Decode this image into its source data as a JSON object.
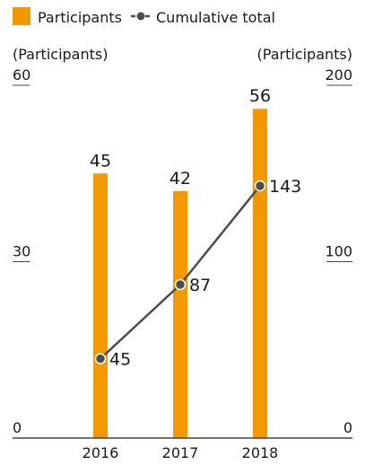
{
  "chart_data": {
    "type": "bar",
    "categories": [
      "2016",
      "2017",
      "2018"
    ],
    "series": [
      {
        "name": "Participants",
        "type": "bar",
        "axis": "left",
        "color": "#F39800",
        "values": [
          45,
          42,
          56
        ],
        "labels": [
          "45",
          "42",
          "56"
        ]
      },
      {
        "name": "Cumulative total",
        "type": "line",
        "axis": "right",
        "color": "#4d4d4d",
        "marker": "circle",
        "values": [
          45,
          87,
          143
        ],
        "labels": [
          "45",
          "87",
          "143"
        ]
      }
    ],
    "left_axis": {
      "label": "(Participants)",
      "ylim": [
        0,
        60
      ],
      "ticks": [
        "0",
        "30",
        "60"
      ]
    },
    "right_axis": {
      "label": "(Participants)",
      "ylim": [
        0,
        200
      ],
      "ticks": [
        "0",
        "100",
        "200"
      ]
    },
    "grid": false,
    "legend": "top-left"
  }
}
